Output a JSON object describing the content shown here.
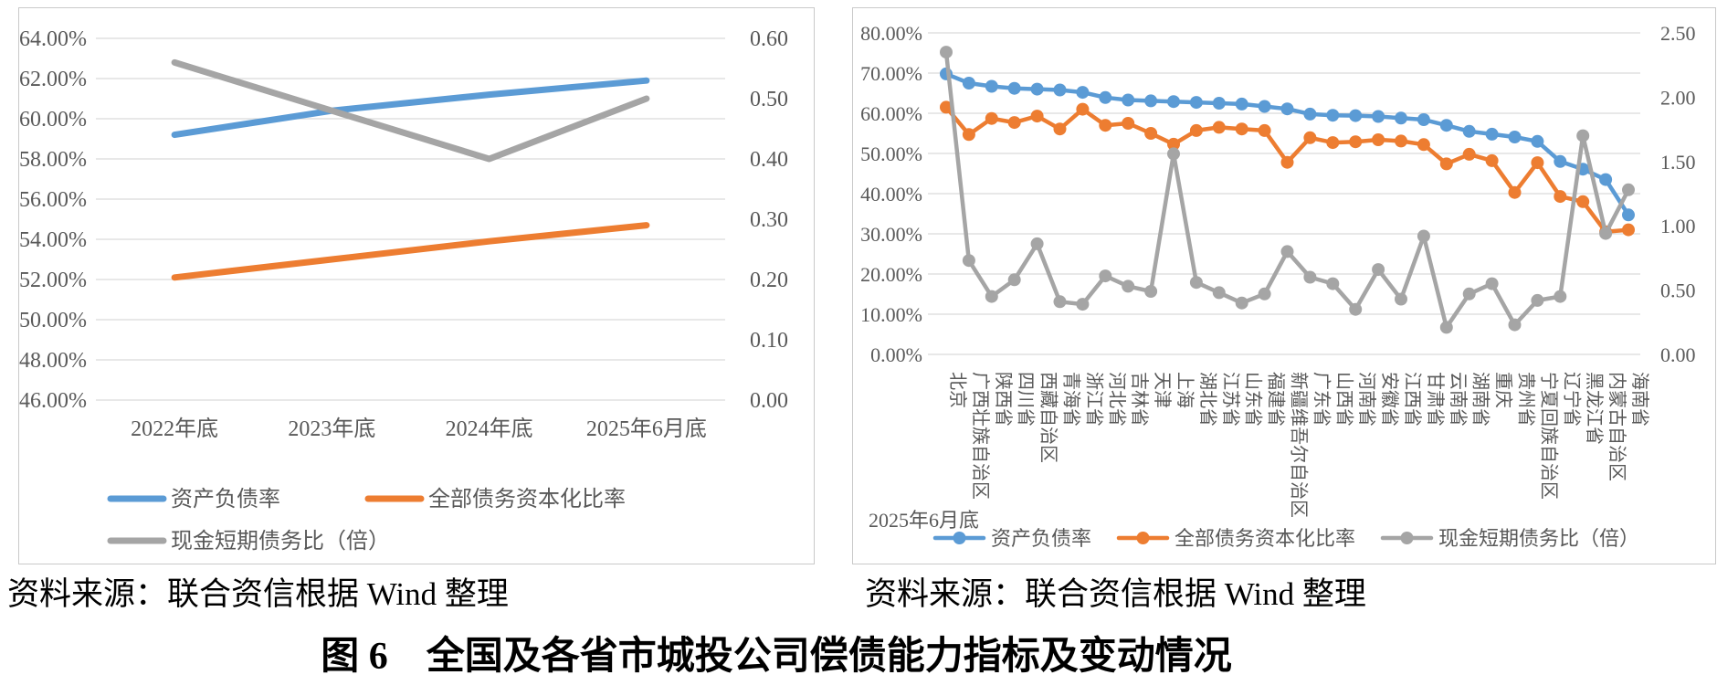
{
  "page": {
    "caption": "图 6　全国及各省市城投公司偿债能力指标及变动情况",
    "left_source": "资料来源：联合资信根据 Wind 整理",
    "right_source": "资料来源：联合资信根据 Wind 整理"
  },
  "colors": {
    "asset_liability": "#5B9BD5",
    "debt_capitalization": "#ED7D31",
    "cash_short_debt": "#A5A5A5",
    "axis_text": "#595959",
    "gridline": "#D9D9D9"
  },
  "chart_data": [
    {
      "id": "national-trend",
      "type": "line",
      "title": "",
      "categories": [
        "2022年底",
        "2023年底",
        "2024年底",
        "2025年6月底"
      ],
      "series": [
        {
          "name": "资产负债率",
          "axis": "left",
          "color_key": "asset_liability",
          "values": [
            59.2,
            60.4,
            61.2,
            61.9
          ]
        },
        {
          "name": "全部债务资本化比率",
          "axis": "left",
          "color_key": "debt_capitalization",
          "values": [
            52.1,
            53.0,
            53.9,
            54.7
          ]
        },
        {
          "name": "现金短期债务比（倍）",
          "axis": "right",
          "color_key": "cash_short_debt",
          "values": [
            0.56,
            0.48,
            0.4,
            0.5
          ]
        }
      ],
      "left_axis": {
        "min": 46,
        "max": 64,
        "ticks": [
          "64.00%",
          "62.00%",
          "60.00%",
          "58.00%",
          "56.00%",
          "54.00%",
          "52.00%",
          "50.00%",
          "48.00%",
          "46.00%"
        ]
      },
      "right_axis": {
        "min": 0,
        "max": 0.6,
        "ticks": [
          "0.60",
          "0.50",
          "0.40",
          "0.30",
          "0.20",
          "0.10",
          "0.00"
        ]
      },
      "grid": true,
      "legend_position": "bottom-left-two-rows"
    },
    {
      "id": "province-comparison",
      "type": "line",
      "title": "",
      "annotation": "2025年6月底",
      "categories": [
        "北京",
        "广西壮族自治区",
        "陕西省",
        "四川省",
        "西藏自治区",
        "青海省",
        "浙江省",
        "河北省",
        "吉林省",
        "天津",
        "上海",
        "湖北省",
        "江苏省",
        "山东省",
        "福建省",
        "新疆维吾尔自治区",
        "广东省",
        "山西省",
        "河南省",
        "安徽省",
        "江西省",
        "甘肃省",
        "云南省",
        "湖南省",
        "重庆",
        "贵州省",
        "宁夏回族自治区",
        "辽宁省",
        "黑龙江省",
        "内蒙古自治区",
        "海南省"
      ],
      "series": [
        {
          "name": "资产负债率",
          "axis": "left",
          "color_key": "asset_liability",
          "values": [
            69.8,
            67.5,
            66.7,
            66.2,
            66.0,
            65.8,
            65.2,
            63.9,
            63.3,
            63.1,
            62.9,
            62.7,
            62.5,
            62.3,
            61.7,
            61.1,
            59.8,
            59.5,
            59.4,
            59.2,
            58.8,
            58.4,
            57.0,
            55.5,
            54.8,
            54.1,
            53.0,
            48.0,
            46.1,
            43.5,
            34.7
          ]
        },
        {
          "name": "全部债务资本化比率",
          "axis": "left",
          "color_key": "debt_capitalization",
          "values": [
            61.5,
            54.7,
            58.7,
            57.7,
            59.3,
            56.1,
            61.0,
            57.0,
            57.5,
            55.0,
            52.3,
            55.7,
            56.5,
            56.1,
            55.7,
            47.8,
            53.9,
            52.7,
            52.9,
            53.4,
            53.1,
            52.2,
            47.4,
            49.8,
            48.2,
            40.3,
            47.7,
            39.3,
            38.0,
            30.5,
            31.0
          ]
        },
        {
          "name": "现金短期债务比（倍）",
          "axis": "right",
          "color_key": "cash_short_debt",
          "values": [
            2.35,
            0.73,
            0.45,
            0.58,
            0.86,
            0.41,
            0.39,
            0.61,
            0.53,
            0.49,
            1.56,
            0.56,
            0.48,
            0.4,
            0.47,
            0.8,
            0.6,
            0.55,
            0.35,
            0.66,
            0.43,
            0.92,
            0.21,
            0.47,
            0.55,
            0.23,
            0.42,
            0.45,
            1.7,
            0.94,
            1.28
          ]
        }
      ],
      "left_axis": {
        "min": 0,
        "max": 80,
        "ticks": [
          "80.00%",
          "70.00%",
          "60.00%",
          "50.00%",
          "40.00%",
          "30.00%",
          "20.00%",
          "10.00%",
          "0.00%"
        ]
      },
      "right_axis": {
        "min": 0,
        "max": 2.5,
        "ticks": [
          "2.50",
          "2.00",
          "1.50",
          "1.00",
          "0.50",
          "0.00"
        ]
      },
      "grid": true,
      "legend_position": "bottom-center-one-row"
    }
  ]
}
